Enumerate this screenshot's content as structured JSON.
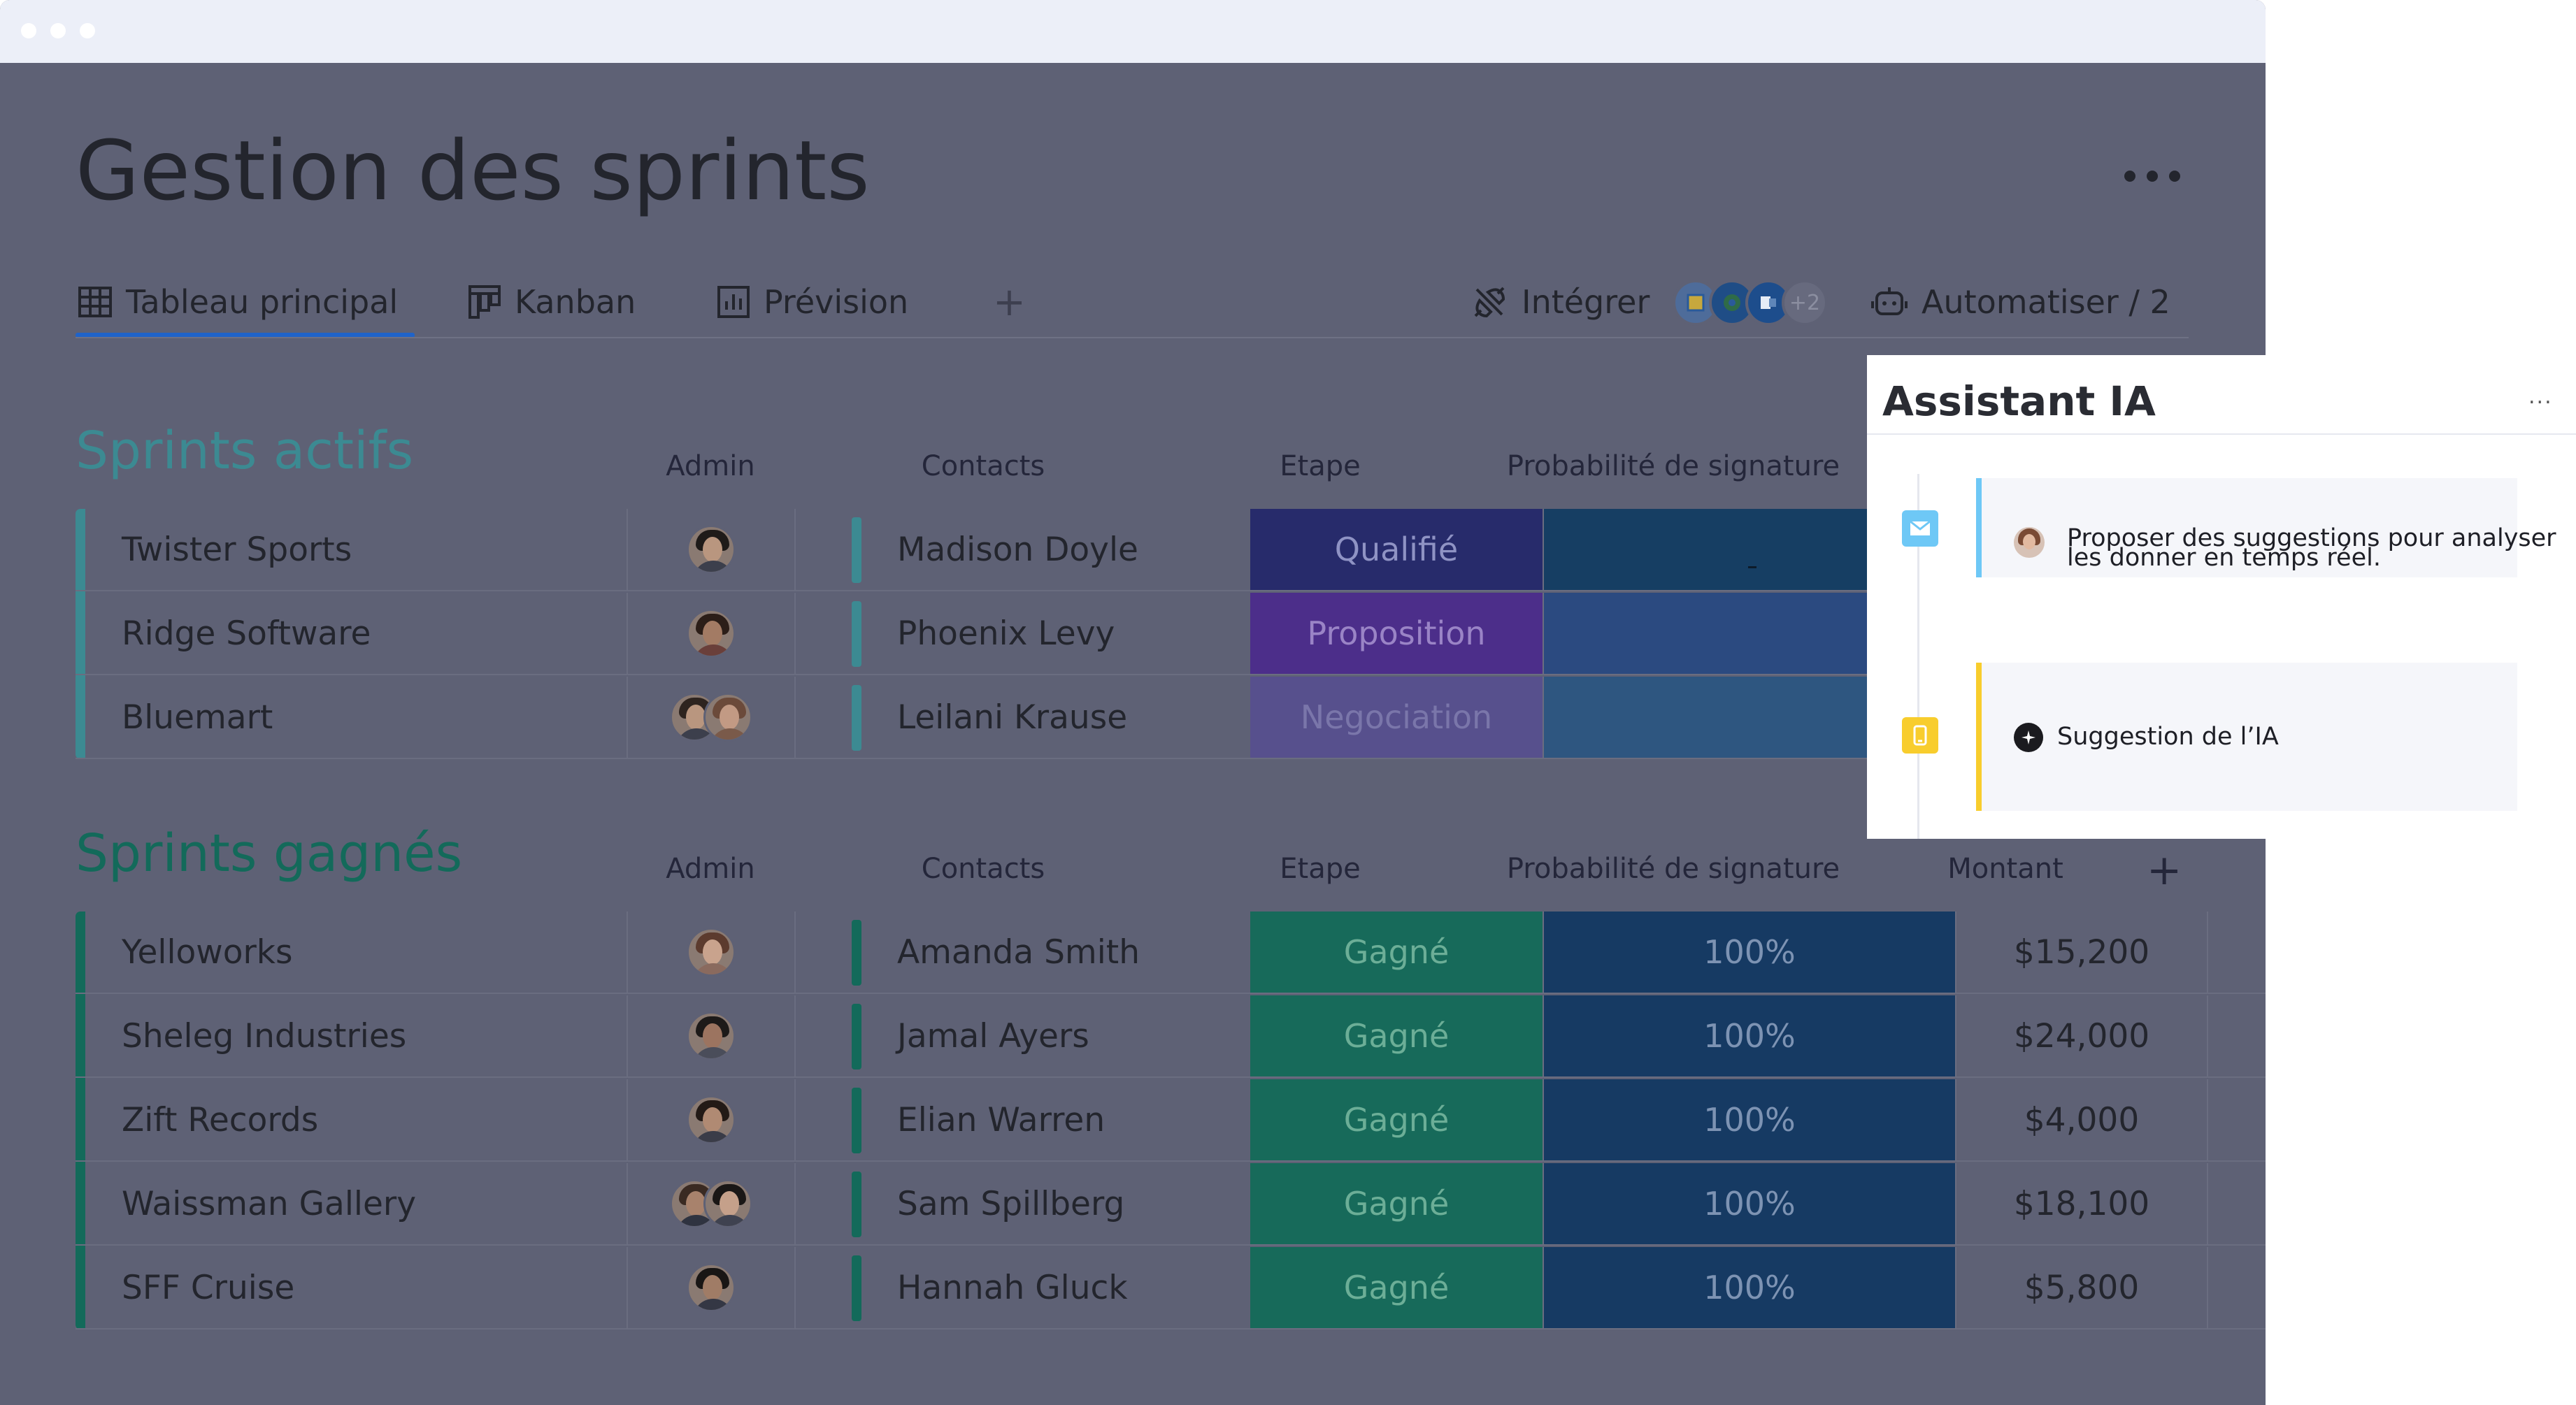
{
  "page": {
    "title": "Gestion des sprints"
  },
  "colors": {
    "stage_qualified": "#272b6b",
    "stage_proposal": "#4c2e8a",
    "stage_negotiation": "#57508d",
    "stage_won": "#176a5a",
    "prob_active": "#163e63",
    "prob_won": "#163a63",
    "tab_underline": "#1f63c9",
    "group_active": "#3c8a92",
    "group_won": "#136a5a"
  },
  "tabs": {
    "items": [
      {
        "label": "Tableau principal",
        "icon": "table-icon",
        "active": true
      },
      {
        "label": "Kanban",
        "icon": "kanban-icon",
        "active": false
      },
      {
        "label": "Prévision",
        "icon": "chart-icon",
        "active": false
      }
    ],
    "add_label": "+",
    "integrate_label": "Intégrer",
    "integrate_more": "+2",
    "automate_label": "Automatiser / 2"
  },
  "columns": {
    "admin": "Admin",
    "contacts": "Contacts",
    "stage": "Etape",
    "probability": "Probabilité de signature",
    "amount": "Montant"
  },
  "groups": [
    {
      "title": "Sprints actifs",
      "rows": [
        {
          "name": "Twister Sports",
          "contact": "Madison Doyle",
          "stage": "Qualifié",
          "probability": "",
          "amount": ""
        },
        {
          "name": "Ridge Software",
          "contact": "Phoenix Levy",
          "stage": "Proposition",
          "probability": "",
          "amount": ""
        },
        {
          "name": "Bluemart",
          "contact": "Leilani Krause",
          "stage": "Negociation",
          "probability": "",
          "amount": ""
        }
      ]
    },
    {
      "title": "Sprints gagnés",
      "rows": [
        {
          "name": "Yelloworks",
          "contact": "Amanda Smith",
          "stage": "Gagné",
          "probability": "100%",
          "amount": "$15,200"
        },
        {
          "name": "Sheleg Industries",
          "contact": "Jamal Ayers",
          "stage": "Gagné",
          "probability": "100%",
          "amount": "$24,000"
        },
        {
          "name": "Zift Records",
          "contact": "Elian Warren",
          "stage": "Gagné",
          "probability": "100%",
          "amount": "$4,000"
        },
        {
          "name": "Waissman Gallery",
          "contact": "Sam Spillberg",
          "stage": "Gagné",
          "probability": "100%",
          "amount": "$18,100"
        },
        {
          "name": "SFF Cruise",
          "contact": "Hannah Gluck",
          "stage": "Gagné",
          "probability": "100%",
          "amount": "$5,800"
        }
      ]
    }
  ],
  "assistant": {
    "title": "Assistant IA",
    "more": "...",
    "items": [
      {
        "icon": "mail-icon",
        "line1": "Proposer des suggestions pour analyser",
        "line2": "les donner en temps réel."
      },
      {
        "icon": "phone-icon",
        "text": "Suggestion de l’IA"
      }
    ]
  }
}
